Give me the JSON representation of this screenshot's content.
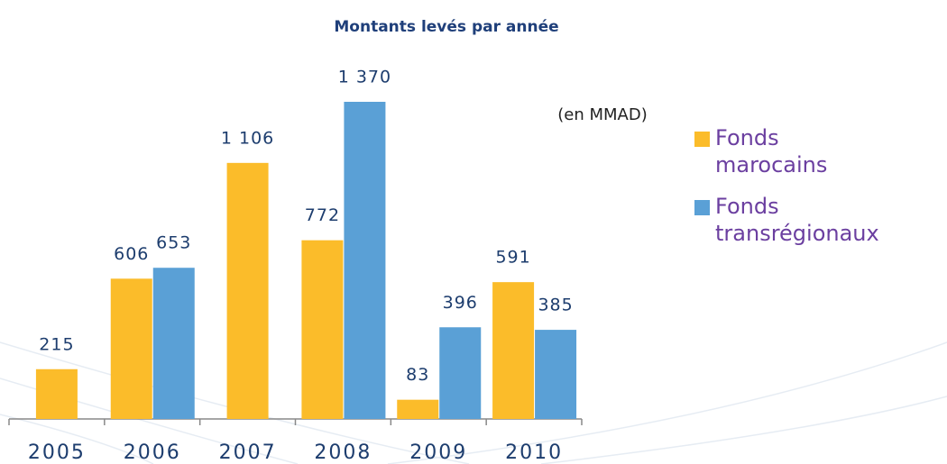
{
  "chart_data": {
    "type": "bar",
    "title": "Montants levés par année",
    "annotation": "(en MMAD)",
    "categories": [
      "2005",
      "2006",
      "2007",
      "2008",
      "2009",
      "2010"
    ],
    "series": [
      {
        "name": "Fonds marocains",
        "color": "#fbbc2a",
        "values": [
          215,
          606,
          1106,
          772,
          83,
          591
        ],
        "value_labels": [
          "215",
          "606",
          "1 106",
          "772",
          "83",
          "591"
        ]
      },
      {
        "name": "Fonds transrégionaux",
        "color": "#5aa0d6",
        "values": [
          null,
          653,
          null,
          1370,
          396,
          385
        ],
        "value_labels": [
          null,
          "653",
          null,
          "1 370",
          "396",
          "385"
        ]
      }
    ]
  }
}
